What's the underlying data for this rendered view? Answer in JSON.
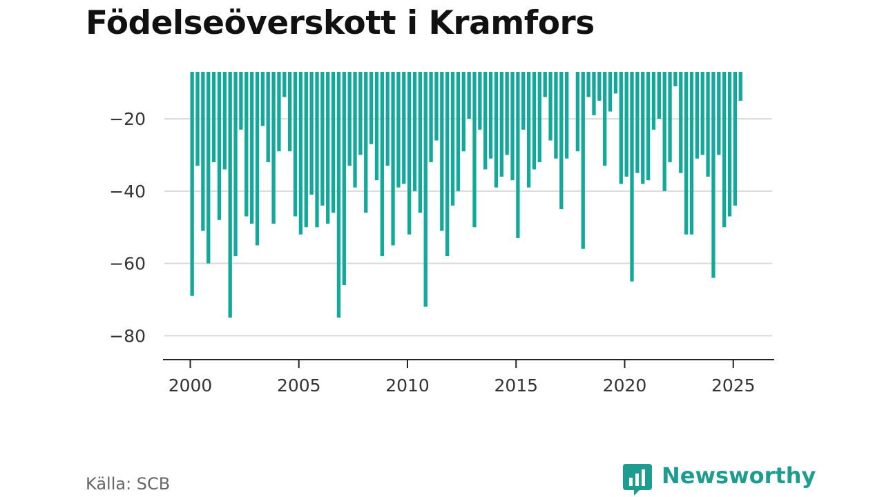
{
  "title": "Födelseöverskott i Kramfors",
  "source": "Källa: SCB",
  "brand": {
    "name": "Newsworthy",
    "icon": "newsworthy-logo-icon",
    "color": "#1e9c8f"
  },
  "chart_data": {
    "type": "bar",
    "title": "Födelseöverskott i Kramfors",
    "xlabel": "",
    "ylabel": "",
    "bar_color": "#12a89a",
    "grid": true,
    "x_start": "2000-01",
    "x_ticks": [
      "2000",
      "2005",
      "2010",
      "2015",
      "2020",
      "2025"
    ],
    "y_ticks": [
      -20,
      -40,
      -60,
      -80
    ],
    "y_tick_labels": [
      "−20",
      "−40",
      "−60",
      "−80"
    ],
    "ylim": [
      -87,
      -7
    ],
    "values": [
      -69,
      -33,
      -51,
      -60,
      -32,
      -48,
      -34,
      -75,
      -58,
      -23,
      -47,
      -49,
      -55,
      -22,
      -32,
      -49,
      -29,
      -14,
      -29,
      -47,
      -52,
      -50,
      -41,
      -50,
      -44,
      -49,
      -46,
      -75,
      -66,
      -33,
      -39,
      -30,
      -46,
      -27,
      -37,
      -58,
      -33,
      -55,
      -39,
      -38,
      -52,
      -40,
      -46,
      -72,
      -32,
      -26,
      -51,
      -58,
      -44,
      -40,
      -29,
      -20,
      -50,
      -23,
      -34,
      -31,
      -39,
      -36,
      -30,
      -37,
      -53,
      -23,
      -39,
      -34,
      -32,
      -14,
      -26,
      -31,
      -45,
      -31,
      null,
      -29,
      -56,
      -14,
      -19,
      -15,
      -33,
      -18,
      -13,
      -38,
      -36,
      -65,
      -35,
      -38,
      -37,
      -23,
      -20,
      -40,
      -32,
      -11,
      -35,
      -52,
      -52,
      -31,
      -30,
      -36,
      -64,
      -30,
      -50,
      -47,
      -44,
      -15
    ]
  }
}
